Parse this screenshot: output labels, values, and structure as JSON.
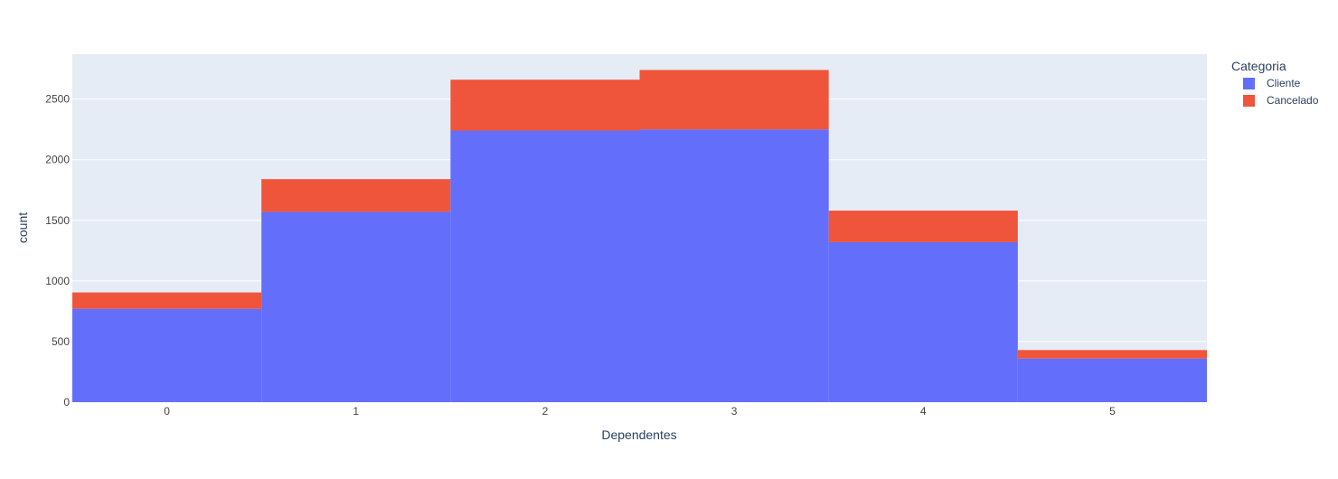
{
  "colors": {
    "plot_bg": "#E5ECF6",
    "grid": "#FFFFFF",
    "text": "#2A3F5F",
    "tick_text": "#444444"
  },
  "chart_data": {
    "type": "bar",
    "barmode": "stack",
    "categories": [
      "0",
      "1",
      "2",
      "3",
      "4",
      "5"
    ],
    "x": [
      0,
      1,
      2,
      3,
      4,
      5
    ],
    "series": [
      {
        "name": "Cliente",
        "color": "#636EFA",
        "values": [
          770,
          1570,
          2240,
          2250,
          1320,
          360
        ]
      },
      {
        "name": "Cancelado",
        "color": "#EF553B",
        "values": [
          135,
          270,
          420,
          490,
          260,
          70
        ]
      }
    ],
    "xlabel": "Dependentes",
    "ylabel": "count",
    "ylim": [
      0,
      2870
    ],
    "yticks": [
      0,
      500,
      1000,
      1500,
      2000,
      2500
    ],
    "xlim": [
      -0.5,
      5.5
    ],
    "grid": true,
    "legend": {
      "title": "Categoria",
      "position": "top-right"
    }
  }
}
